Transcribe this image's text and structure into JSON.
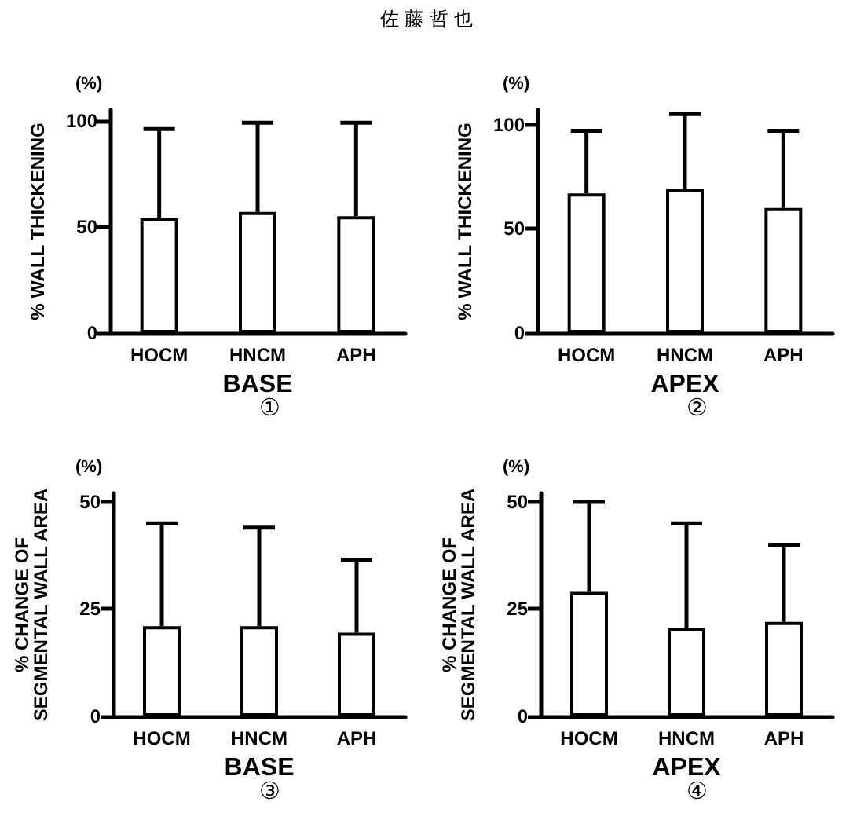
{
  "chart_data": [
    {
      "type": "bar",
      "title": "佐 藤 哲 也",
      "ylabel": "% WALL THICKENING",
      "xlabel": "BASE",
      "annotations": [
        "(%)",
        "①"
      ],
      "categories": [
        "HOCM",
        "HNCM",
        "APH"
      ],
      "color": "#ffffff",
      "values": [
        54,
        57,
        55
      ],
      "errors": [
        [
          54,
          96
        ],
        [
          57,
          99
        ],
        [
          55,
          99
        ]
      ],
      "ylim": [
        0,
        105
      ],
      "yticks": [
        0,
        50,
        100
      ],
      "grid": false
    },
    {
      "type": "bar",
      "ylabel": "% WALL THICKENING",
      "xlabel": "APEX",
      "annotations": [
        "(%)",
        "②"
      ],
      "categories": [
        "HOCM",
        "HNCM",
        "APH"
      ],
      "color": "#ffffff",
      "values": [
        67,
        69,
        60
      ],
      "errors": [
        [
          67,
          97
        ],
        [
          69,
          105
        ],
        [
          60,
          97
        ]
      ],
      "ylim": [
        0,
        107
      ],
      "yticks": [
        0,
        50,
        100
      ],
      "grid": false
    },
    {
      "type": "bar",
      "ylabel": "% CHANGE OF\nSEGMENTAL WALL AREA",
      "xlabel": "BASE",
      "annotations": [
        "(%)",
        "③"
      ],
      "categories": [
        "HOCM",
        "HNCM",
        "APH"
      ],
      "color": "#ffffff",
      "values": [
        21,
        21,
        19.5
      ],
      "errors": [
        [
          21,
          45
        ],
        [
          21,
          44
        ],
        [
          19.5,
          36.5
        ]
      ],
      "ylim": [
        0,
        52
      ],
      "yticks": [
        0,
        25,
        50
      ],
      "grid": false
    },
    {
      "type": "bar",
      "ylabel": "% CHANGE OF\nSEGMENTAL WALL AREA",
      "xlabel": "APEX",
      "annotations": [
        "(%)",
        "④"
      ],
      "categories": [
        "HOCM",
        "HNCM",
        "APH"
      ],
      "color": "#ffffff",
      "values": [
        29,
        20.5,
        22
      ],
      "errors": [
        [
          29,
          50
        ],
        [
          20.5,
          45
        ],
        [
          22,
          40
        ]
      ],
      "ylim": [
        0,
        52
      ],
      "yticks": [
        0,
        25,
        50
      ],
      "grid": false
    }
  ]
}
